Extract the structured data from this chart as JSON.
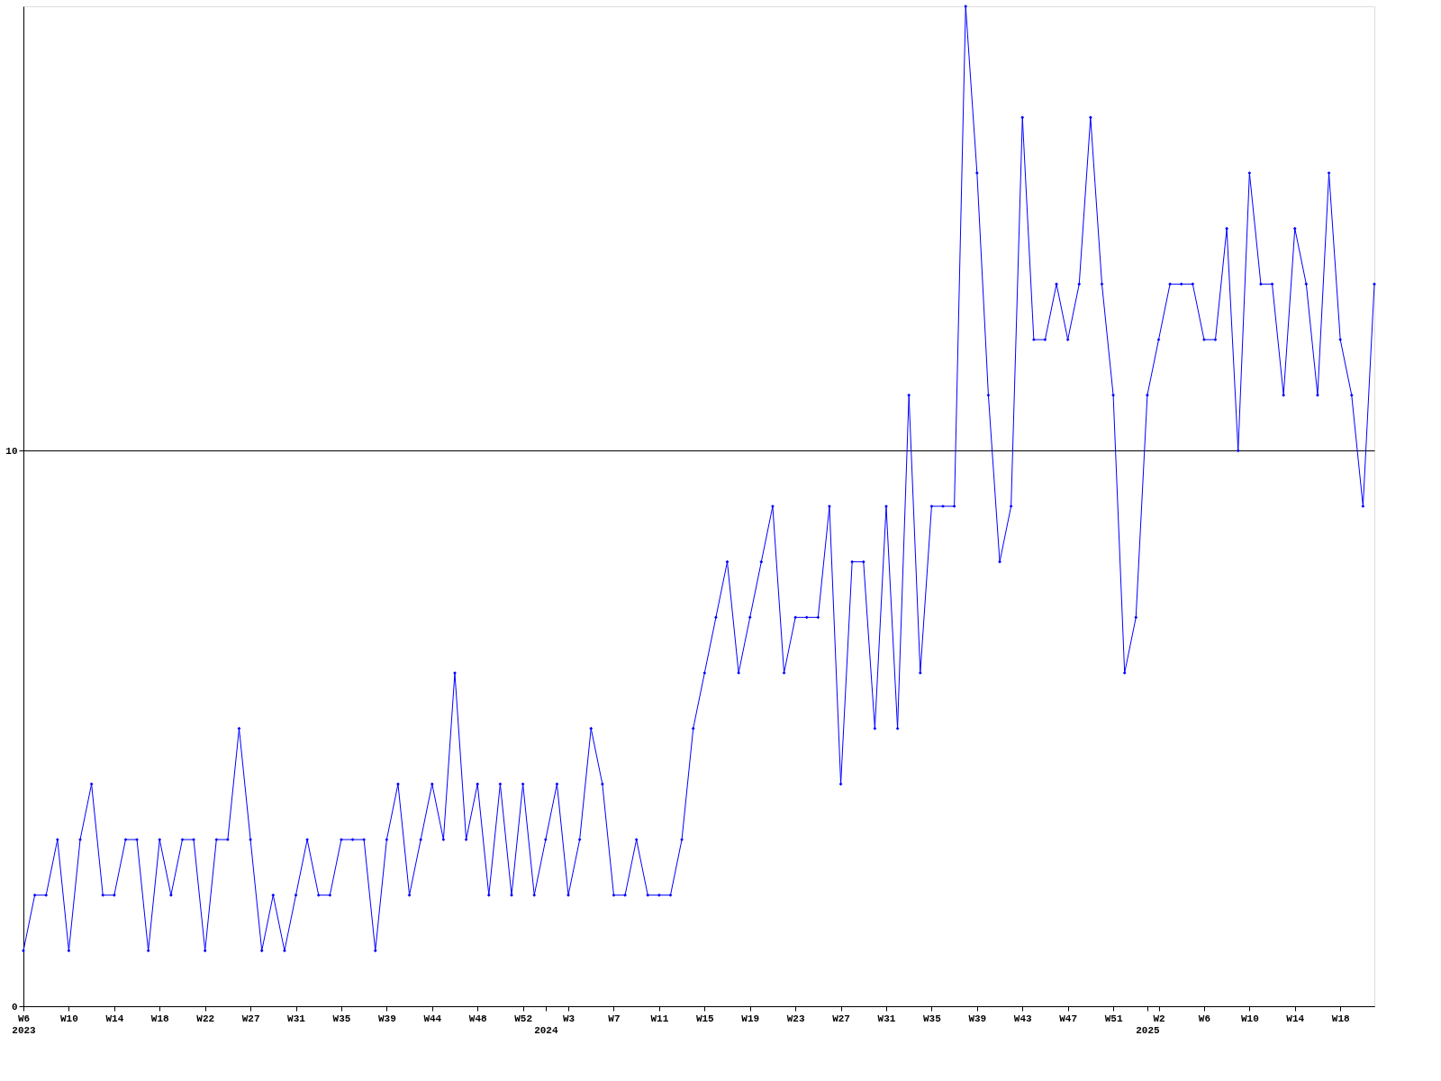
{
  "chart_data": {
    "type": "line",
    "categories": [
      "W6\n2023",
      null,
      null,
      null,
      "W10",
      null,
      null,
      null,
      "W14",
      null,
      null,
      null,
      "W18",
      null,
      null,
      null,
      "W22",
      null,
      null,
      null,
      "W27",
      null,
      null,
      null,
      "W31",
      null,
      null,
      null,
      "W35",
      null,
      null,
      null,
      "W39",
      null,
      null,
      null,
      "W44",
      null,
      null,
      null,
      "W48",
      null,
      null,
      null,
      "W52",
      null,
      "\n2024",
      null,
      "W3",
      null,
      null,
      null,
      "W7",
      null,
      null,
      null,
      "W11",
      null,
      null,
      null,
      "W15",
      null,
      null,
      null,
      "W19",
      null,
      null,
      null,
      "W23",
      null,
      null,
      null,
      "W27",
      null,
      null,
      null,
      "W31",
      null,
      null,
      null,
      "W35",
      null,
      null,
      null,
      "W39",
      null,
      null,
      null,
      "W43",
      null,
      null,
      null,
      "W47",
      null,
      null,
      null,
      "W51",
      null,
      null,
      "\n2025",
      "W2",
      null,
      null,
      null,
      "W6",
      null,
      null,
      null,
      "W10",
      null,
      null,
      null,
      "W14",
      null,
      null,
      null,
      "W18",
      null,
      null,
      null
    ],
    "series": [
      {
        "color": "#0000ff",
        "values": [
          1,
          2,
          2,
          3,
          1,
          3,
          4,
          2,
          2,
          3,
          3,
          1,
          3,
          2,
          3,
          3,
          1,
          3,
          3,
          5,
          3,
          1,
          2,
          1,
          2,
          3,
          2,
          2,
          3,
          3,
          3,
          1,
          3,
          4,
          2,
          3,
          4,
          3,
          6,
          3,
          4,
          2,
          4,
          2,
          4,
          2,
          3,
          4,
          2,
          3,
          5,
          4,
          2,
          2,
          3,
          2,
          2,
          2,
          3,
          5,
          6,
          7,
          8,
          6,
          7,
          8,
          9,
          6,
          7,
          7,
          7,
          9,
          4,
          8,
          8,
          5,
          9,
          5,
          11,
          6,
          9,
          9,
          9,
          18,
          15,
          11,
          8,
          9,
          16,
          12,
          12,
          13,
          12,
          13,
          16,
          13,
          11,
          6,
          7,
          11,
          12,
          13,
          13,
          13,
          12,
          12,
          14,
          10,
          15,
          13,
          13,
          11,
          14,
          13,
          11,
          15,
          12,
          11,
          9,
          13
        ]
      }
    ],
    "ylim": [
      0,
      18
    ],
    "yticks": [
      0,
      10
    ],
    "grid": "y",
    "marker": "diamond",
    "line_style": "solid"
  }
}
